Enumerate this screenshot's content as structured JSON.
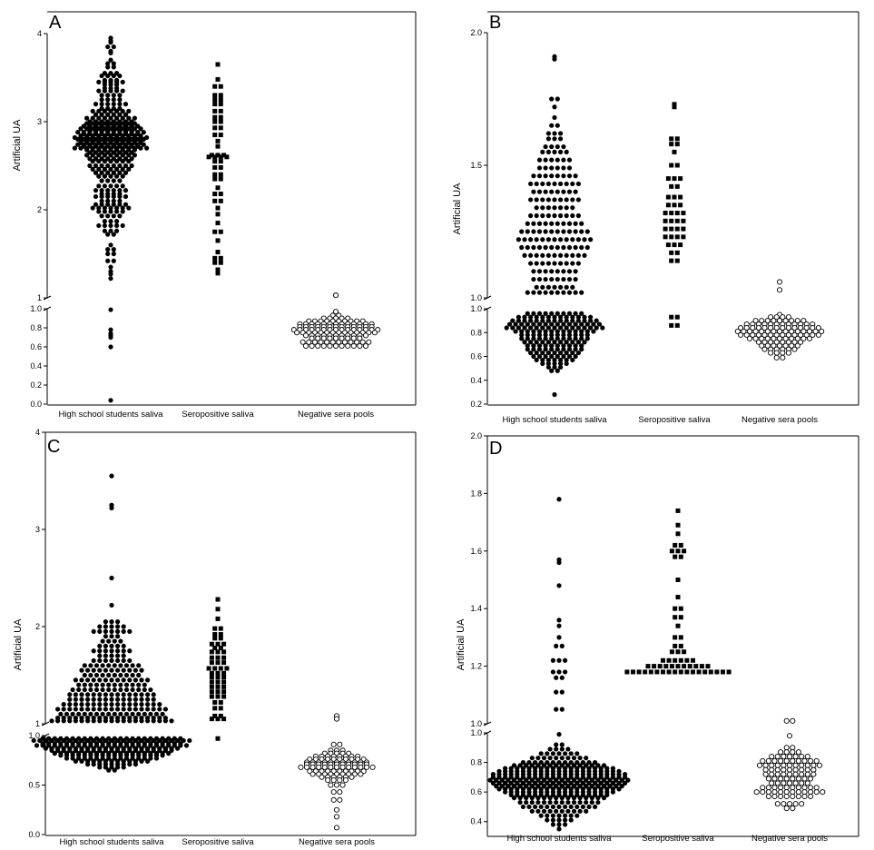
{
  "chart_data": [
    {
      "panel": "A",
      "type": "scatter",
      "ylabel": "Artificial UA",
      "categories": [
        "High school students saliva",
        "Seropositive saliva",
        "Negative sera pools"
      ],
      "axis_break": true,
      "upper_segment": {
        "ylim": [
          1,
          4
        ],
        "ticks": [
          1,
          2,
          3,
          4
        ]
      },
      "lower_segment": {
        "ylim": [
          0.0,
          1.0
        ],
        "ticks": [
          0.0,
          0.2,
          0.4,
          0.6,
          0.8,
          1.0
        ]
      },
      "series": [
        {
          "category": "High school students saliva",
          "marker": "filled-circle",
          "values": [
            3.95,
            3.92,
            3.9,
            3.85,
            3.8,
            3.78,
            3.7,
            3.66,
            3.62,
            3.55,
            3.52,
            3.47,
            3.45,
            3.42,
            3.38,
            3.35,
            3.3,
            3.25,
            3.2,
            3.15,
            3.12,
            3.08,
            3.04,
            3.0,
            2.98,
            2.95,
            2.92,
            2.9,
            2.88,
            2.86,
            2.84,
            2.82,
            2.8,
            2.78,
            2.76,
            2.74,
            2.72,
            2.7,
            2.68,
            2.65,
            2.62,
            2.58,
            2.55,
            2.5,
            2.46,
            2.42,
            2.38,
            2.33,
            2.27,
            2.22,
            2.18,
            2.15,
            2.1,
            2.06,
            2.02,
            1.98,
            1.93,
            1.87,
            1.82,
            1.76,
            1.72,
            1.6,
            1.55,
            1.5,
            1.42,
            1.35,
            1.3,
            1.27,
            1.22,
            0.99,
            0.78,
            0.74,
            0.72,
            0.7,
            0.6,
            0.04
          ],
          "counts": [
            1,
            1,
            1,
            2,
            1,
            1,
            1,
            2,
            2,
            3,
            4,
            3,
            5,
            3,
            3,
            5,
            4,
            4,
            6,
            4,
            7,
            6,
            9,
            8,
            9,
            10,
            11,
            8,
            12,
            10,
            11,
            13,
            12,
            11,
            11,
            12,
            10,
            13,
            9,
            8,
            9,
            8,
            7,
            8,
            7,
            6,
            5,
            4,
            5,
            6,
            4,
            6,
            4,
            6,
            7,
            5,
            4,
            3,
            5,
            3,
            2,
            1,
            2,
            2,
            2,
            1,
            1,
            1,
            1,
            1,
            1,
            1,
            1,
            1,
            1,
            1
          ]
        },
        {
          "category": "Seropositive saliva",
          "marker": "filled-square",
          "values": [
            3.65,
            3.48,
            3.4,
            3.3,
            3.25,
            3.2,
            3.12,
            3.05,
            3.0,
            2.93,
            2.85,
            2.78,
            2.72,
            2.62,
            2.6,
            2.55,
            2.48,
            2.4,
            2.35,
            2.25,
            2.18,
            2.1,
            2.02,
            1.95,
            1.85,
            1.75,
            1.65,
            1.52,
            1.45,
            1.4,
            1.32,
            1.28
          ],
          "counts": [
            1,
            1,
            2,
            2,
            2,
            2,
            2,
            2,
            2,
            2,
            2,
            1,
            1,
            3,
            4,
            2,
            2,
            2,
            2,
            1,
            2,
            2,
            1,
            1,
            1,
            2,
            1,
            1,
            2,
            2,
            1,
            1
          ]
        },
        {
          "category": "Negative sera pools",
          "marker": "open-circle",
          "values": [
            1.03,
            0.97,
            0.93,
            0.9,
            0.87,
            0.84,
            0.81,
            0.78,
            0.75,
            0.72,
            0.69,
            0.65,
            0.61
          ],
          "counts": [
            1,
            1,
            2,
            5,
            10,
            13,
            13,
            15,
            14,
            11,
            9,
            12,
            11
          ]
        }
      ]
    },
    {
      "panel": "B",
      "type": "scatter",
      "ylabel": "Artificial UA",
      "categories": [
        "High school students saliva",
        "Seropositive saliva",
        "Negative sera pools"
      ],
      "axis_break": true,
      "upper_segment": {
        "ylim": [
          1.0,
          2.0
        ],
        "ticks": [
          1.0,
          1.5,
          2.0
        ]
      },
      "lower_segment": {
        "ylim": [
          0.2,
          1.0
        ],
        "ticks": [
          0.2,
          0.4,
          0.6,
          0.8,
          1.0
        ]
      },
      "series": [
        {
          "category": "High school students saliva",
          "marker": "filled-circle",
          "values": [
            1.91,
            1.9,
            1.75,
            1.72,
            1.68,
            1.65,
            1.62,
            1.6,
            1.57,
            1.55,
            1.52,
            1.49,
            1.46,
            1.43,
            1.4,
            1.37,
            1.34,
            1.31,
            1.28,
            1.25,
            1.22,
            1.19,
            1.16,
            1.13,
            1.1,
            1.07,
            1.04,
            1.02,
            0.96,
            0.93,
            0.9,
            0.87,
            0.84,
            0.81,
            0.78,
            0.75,
            0.72,
            0.69,
            0.66,
            0.63,
            0.6,
            0.57,
            0.54,
            0.51,
            0.48,
            0.28
          ],
          "counts": [
            1,
            1,
            2,
            1,
            1,
            2,
            3,
            3,
            4,
            5,
            6,
            6,
            8,
            9,
            8,
            9,
            7,
            9,
            10,
            12,
            13,
            12,
            11,
            9,
            8,
            8,
            7,
            10,
            10,
            13,
            15,
            16,
            17,
            14,
            12,
            12,
            11,
            10,
            10,
            9,
            8,
            7,
            5,
            3,
            2,
            1
          ]
        },
        {
          "category": "Seropositive saliva",
          "marker": "filled-square",
          "values": [
            1.73,
            1.72,
            1.6,
            1.58,
            1.55,
            1.5,
            1.45,
            1.42,
            1.38,
            1.35,
            1.32,
            1.29,
            1.26,
            1.23,
            1.2,
            1.17,
            1.14,
            0.93,
            0.86
          ],
          "counts": [
            1,
            1,
            2,
            2,
            1,
            2,
            3,
            2,
            3,
            3,
            4,
            4,
            4,
            4,
            3,
            2,
            2,
            2,
            2
          ]
        },
        {
          "category": "Negative sera pools",
          "marker": "open-circle",
          "values": [
            1.06,
            1.03,
            0.95,
            0.93,
            0.9,
            0.87,
            0.84,
            0.81,
            0.78,
            0.75,
            0.72,
            0.69,
            0.66,
            0.63,
            0.59
          ],
          "counts": [
            1,
            1,
            1,
            4,
            9,
            12,
            14,
            15,
            14,
            11,
            8,
            7,
            6,
            4,
            2
          ]
        }
      ]
    },
    {
      "panel": "C",
      "type": "scatter",
      "ylabel": "Artificial UA",
      "categories": [
        "High school students saliva",
        "Seropositive saliva",
        "Negative sera pools"
      ],
      "axis_break": true,
      "upper_segment": {
        "ylim": [
          1,
          4
        ],
        "ticks": [
          1,
          2,
          3,
          4
        ]
      },
      "lower_segment": {
        "ylim": [
          0.0,
          1.0
        ],
        "ticks": [
          0.0,
          0.5,
          1.0
        ]
      },
      "series": [
        {
          "category": "High school students saliva",
          "marker": "filled-circle",
          "values": [
            3.55,
            3.25,
            3.22,
            2.5,
            2.22,
            2.05,
            2.0,
            1.95,
            1.9,
            1.85,
            1.8,
            1.75,
            1.7,
            1.65,
            1.6,
            1.55,
            1.5,
            1.45,
            1.4,
            1.35,
            1.3,
            1.25,
            1.2,
            1.15,
            1.1,
            1.06,
            1.03,
            0.97,
            0.95,
            0.92,
            0.9,
            0.87,
            0.85,
            0.82,
            0.8,
            0.77,
            0.74,
            0.71,
            0.68,
            0.65
          ],
          "counts": [
            1,
            1,
            1,
            1,
            1,
            3,
            5,
            7,
            3,
            4,
            5,
            7,
            5,
            7,
            10,
            11,
            10,
            13,
            12,
            14,
            15,
            15,
            17,
            19,
            18,
            19,
            21,
            24,
            27,
            24,
            26,
            23,
            21,
            20,
            18,
            16,
            13,
            9,
            5,
            2
          ]
        },
        {
          "category": "Seropositive saliva",
          "marker": "filled-square",
          "values": [
            2.28,
            2.18,
            2.08,
            1.98,
            1.92,
            1.88,
            1.82,
            1.78,
            1.74,
            1.68,
            1.63,
            1.57,
            1.52,
            1.48,
            1.43,
            1.38,
            1.33,
            1.28,
            1.22,
            1.16,
            1.08,
            1.05,
            0.97
          ],
          "counts": [
            1,
            1,
            1,
            2,
            2,
            2,
            3,
            2,
            3,
            3,
            3,
            4,
            3,
            3,
            3,
            3,
            3,
            3,
            2,
            2,
            2,
            3,
            1
          ]
        },
        {
          "category": "Negative sera pools",
          "marker": "open-circle",
          "values": [
            1.08,
            1.05,
            0.91,
            0.85,
            0.82,
            0.79,
            0.76,
            0.73,
            0.71,
            0.68,
            0.64,
            0.61,
            0.58,
            0.55,
            0.5,
            0.43,
            0.35,
            0.25,
            0.18,
            0.07
          ],
          "counts": [
            1,
            1,
            2,
            3,
            5,
            8,
            10,
            11,
            11,
            13,
            10,
            9,
            6,
            4,
            3,
            2,
            2,
            1,
            1,
            1
          ]
        }
      ]
    },
    {
      "panel": "D",
      "type": "scatter",
      "ylabel": "Artificial UA",
      "categories": [
        "High school students saliva",
        "Seropositive saliva",
        "Negative sera pools"
      ],
      "axis_break": true,
      "upper_segment": {
        "ylim": [
          1.0,
          2.0
        ],
        "ticks": [
          1.0,
          1.2,
          1.4,
          1.6,
          1.8,
          2.0
        ]
      },
      "lower_segment": {
        "ylim": [
          0.3,
          1.0
        ],
        "ticks": [
          0.4,
          0.6,
          0.8,
          1.0
        ]
      },
      "series": [
        {
          "category": "High school students saliva",
          "marker": "filled-circle",
          "values": [
            1.78,
            1.57,
            1.56,
            1.48,
            1.36,
            1.34,
            1.3,
            1.27,
            1.22,
            1.18,
            1.16,
            1.11,
            1.05,
            0.99,
            0.92,
            0.89,
            0.86,
            0.83,
            0.8,
            0.78,
            0.76,
            0.74,
            0.72,
            0.7,
            0.68,
            0.66,
            0.64,
            0.62,
            0.6,
            0.58,
            0.56,
            0.53,
            0.5,
            0.47,
            0.44,
            0.41,
            0.38,
            0.35
          ],
          "counts": [
            1,
            1,
            1,
            1,
            1,
            1,
            1,
            2,
            3,
            3,
            2,
            2,
            2,
            1,
            2,
            4,
            7,
            10,
            13,
            16,
            19,
            21,
            23,
            23,
            24,
            23,
            22,
            21,
            19,
            17,
            16,
            14,
            13,
            10,
            7,
            5,
            3,
            1
          ]
        },
        {
          "category": "Seropositive saliva",
          "marker": "filled-square",
          "values": [
            1.74,
            1.69,
            1.66,
            1.62,
            1.6,
            1.58,
            1.5,
            1.44,
            1.4,
            1.37,
            1.34,
            1.3,
            1.27,
            1.25,
            1.22,
            1.2,
            1.18
          ],
          "counts": [
            1,
            1,
            1,
            2,
            3,
            2,
            1,
            1,
            2,
            2,
            1,
            2,
            2,
            3,
            6,
            11,
            18
          ]
        },
        {
          "category": "Negative sera pools",
          "marker": "open-circle",
          "values": [
            1.01,
            0.98,
            0.9,
            0.87,
            0.84,
            0.81,
            0.78,
            0.75,
            0.72,
            0.69,
            0.66,
            0.63,
            0.6,
            0.57,
            0.52,
            0.49
          ],
          "counts": [
            2,
            1,
            2,
            4,
            7,
            10,
            11,
            9,
            9,
            8,
            7,
            10,
            12,
            8,
            5,
            2
          ]
        }
      ]
    }
  ]
}
